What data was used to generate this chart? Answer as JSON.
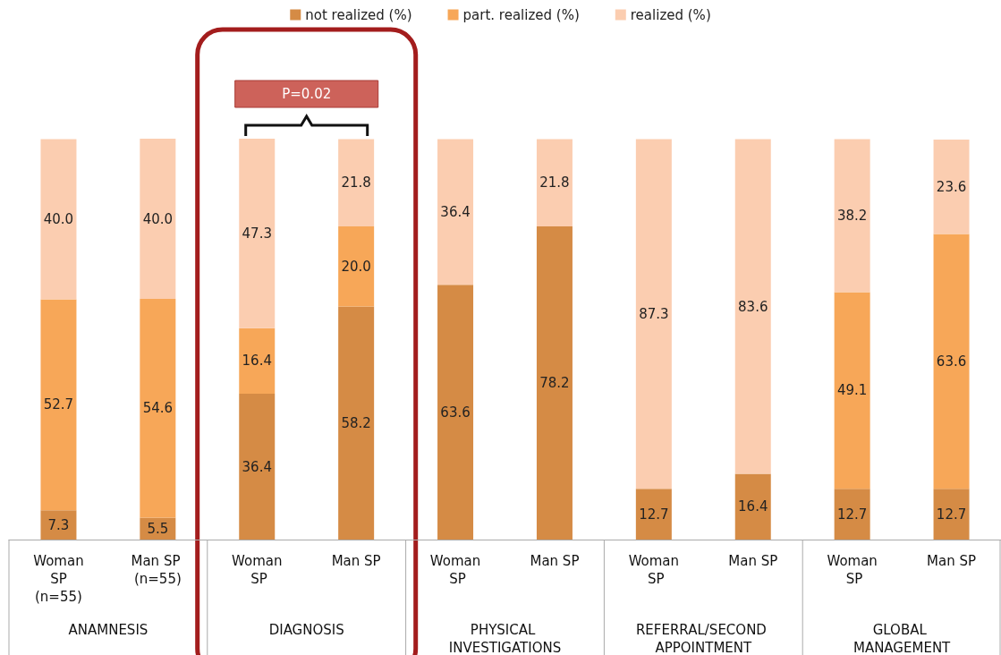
{
  "chart_data": {
    "type": "bar",
    "stacked": true,
    "legend": "top",
    "tick_labels": "x",
    "categories": [
      "Woman SP (n=55)",
      "Man SP (n=55)",
      "Woman SP",
      "Man SP",
      "Woman SP",
      "Man SP",
      "Woman SP",
      "Man SP",
      "Woman SP",
      "Man SP"
    ],
    "series": [
      {
        "name": "not realized (%)",
        "color": "#d58b45",
        "values": [
          7.3,
          5.5,
          36.4,
          58.2,
          63.6,
          78.2,
          12.7,
          16.4,
          12.7,
          12.7
        ],
        "value_labels": [
          "7.3",
          "5.5",
          "36.4",
          "58.2",
          "63.6",
          "78.2",
          "12.7",
          "16.4",
          "12.7",
          "12.7"
        ]
      },
      {
        "name": "part. realized (%)",
        "color": "#f7a758",
        "values": [
          52.7,
          54.6,
          16.4,
          20.0,
          null,
          null,
          null,
          null,
          49.1,
          63.6
        ],
        "value_labels": [
          "52.7",
          "54.6",
          "16.4",
          "20.0",
          null,
          null,
          null,
          null,
          "49.1",
          "63.6"
        ]
      },
      {
        "name": "realized (%)",
        "color": "#fbcdb0",
        "values": [
          40.0,
          40.0,
          47.3,
          21.8,
          36.4,
          21.8,
          87.3,
          83.6,
          38.2,
          23.6
        ],
        "value_labels": [
          "40.0",
          "40.0",
          "47.3",
          "21.8",
          "36.4",
          "21.8",
          "87.3",
          "83.6",
          "38.2",
          "23.6"
        ]
      }
    ],
    "annotations": [
      "P=0.02",
      "ANAMNESIS",
      "DIAGNOSIS",
      "PHYSICAL INVESTIGATIONS",
      "REFERRAL/SECOND APPOINTMENT",
      "GLOBAL MANAGEMENT"
    ]
  }
}
